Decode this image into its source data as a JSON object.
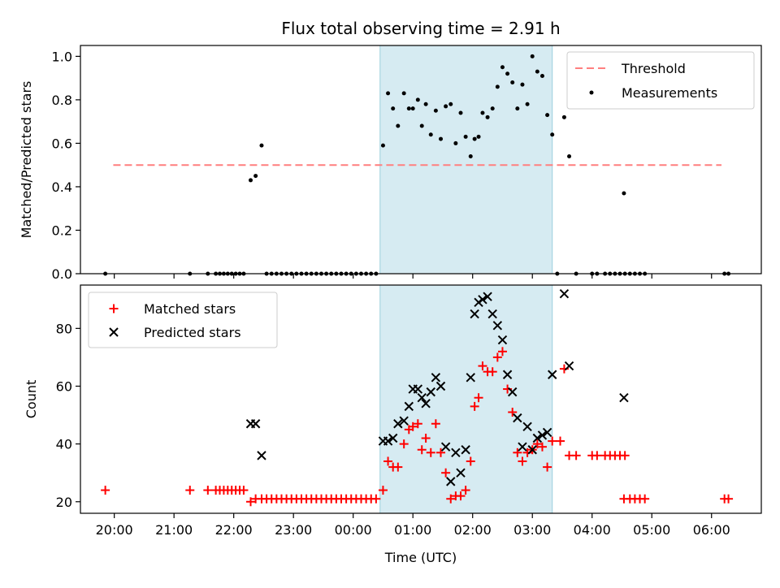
{
  "chart_data": [
    {
      "type": "scatter",
      "title": "Flux total observing time = 2.91 h",
      "xlabel": "",
      "ylabel": "Matched/Predicted stars",
      "ylim": [
        0,
        1.05
      ],
      "yticks": [
        "0.0",
        "0.2",
        "0.4",
        "0.6",
        "0.8",
        "1.0"
      ],
      "ytick_values": [
        0,
        0.2,
        0.4,
        0.6,
        0.8,
        1.0
      ],
      "legend_position": "top-right",
      "shaded_interval": [
        "00:27",
        "03:20"
      ],
      "threshold": {
        "name": "Threshold",
        "value": 0.5,
        "x_range": [
          "19:59",
          "06:10"
        ],
        "color": "#ff7f7f"
      },
      "series": [
        {
          "name": "Measurements",
          "color": "#000000",
          "points": [
            [
              "19:51",
              0
            ],
            [
              "21:16",
              0
            ],
            [
              "21:34",
              0
            ],
            [
              "21:42",
              0
            ],
            [
              "21:46",
              0
            ],
            [
              "21:50",
              0
            ],
            [
              "21:54",
              0
            ],
            [
              "21:58",
              0
            ],
            [
              "22:02",
              0
            ],
            [
              "22:06",
              0
            ],
            [
              "22:10",
              0
            ],
            [
              "22:17",
              0.43
            ],
            [
              "22:22",
              0.45
            ],
            [
              "22:28",
              0.59
            ],
            [
              "22:33",
              0
            ],
            [
              "22:38",
              0
            ],
            [
              "22:43",
              0
            ],
            [
              "22:48",
              0
            ],
            [
              "22:53",
              0
            ],
            [
              "22:58",
              0
            ],
            [
              "23:03",
              0
            ],
            [
              "23:08",
              0
            ],
            [
              "23:13",
              0
            ],
            [
              "23:18",
              0
            ],
            [
              "23:23",
              0
            ],
            [
              "23:28",
              0
            ],
            [
              "23:33",
              0
            ],
            [
              "23:38",
              0
            ],
            [
              "23:43",
              0
            ],
            [
              "23:48",
              0
            ],
            [
              "23:53",
              0
            ],
            [
              "23:58",
              0
            ],
            [
              "00:03",
              0
            ],
            [
              "00:08",
              0
            ],
            [
              "00:13",
              0
            ],
            [
              "00:18",
              0
            ],
            [
              "00:23",
              0
            ],
            [
              "00:30",
              0.59
            ],
            [
              "00:35",
              0.83
            ],
            [
              "00:40",
              0.76
            ],
            [
              "00:45",
              0.68
            ],
            [
              "00:51",
              0.83
            ],
            [
              "00:56",
              0.76
            ],
            [
              "01:00",
              0.76
            ],
            [
              "01:05",
              0.8
            ],
            [
              "01:09",
              0.68
            ],
            [
              "01:13",
              0.78
            ],
            [
              "01:18",
              0.64
            ],
            [
              "01:23",
              0.75
            ],
            [
              "01:28",
              0.62
            ],
            [
              "01:33",
              0.77
            ],
            [
              "01:38",
              0.78
            ],
            [
              "01:43",
              0.6
            ],
            [
              "01:48",
              0.74
            ],
            [
              "01:53",
              0.63
            ],
            [
              "01:58",
              0.54
            ],
            [
              "02:02",
              0.62
            ],
            [
              "02:06",
              0.63
            ],
            [
              "02:10",
              0.74
            ],
            [
              "02:15",
              0.72
            ],
            [
              "02:20",
              0.76
            ],
            [
              "02:25",
              0.86
            ],
            [
              "02:30",
              0.95
            ],
            [
              "02:35",
              0.92
            ],
            [
              "02:40",
              0.88
            ],
            [
              "02:45",
              0.76
            ],
            [
              "02:50",
              0.87
            ],
            [
              "02:55",
              0.78
            ],
            [
              "03:00",
              1.0
            ],
            [
              "03:05",
              0.93
            ],
            [
              "03:10",
              0.91
            ],
            [
              "03:15",
              0.73
            ],
            [
              "03:20",
              0.64
            ],
            [
              "03:25",
              0
            ],
            [
              "03:32",
              0.72
            ],
            [
              "03:37",
              0.54
            ],
            [
              "03:44",
              0
            ],
            [
              "04:00",
              0
            ],
            [
              "04:05",
              0
            ],
            [
              "04:13",
              0
            ],
            [
              "04:18",
              0
            ],
            [
              "04:23",
              0
            ],
            [
              "04:28",
              0
            ],
            [
              "04:33",
              0
            ],
            [
              "04:32",
              0.37
            ],
            [
              "04:38",
              0
            ],
            [
              "04:43",
              0
            ],
            [
              "04:48",
              0
            ],
            [
              "04:53",
              0
            ],
            [
              "06:13",
              0
            ],
            [
              "06:17",
              0
            ]
          ]
        }
      ]
    },
    {
      "type": "scatter",
      "title": "",
      "xlabel": "Time (UTC)",
      "ylabel": "Count",
      "ylim": [
        16,
        95
      ],
      "yticks": [
        "20",
        "40",
        "60",
        "80"
      ],
      "ytick_values": [
        20,
        40,
        60,
        80
      ],
      "xticks": [
        "20:00",
        "21:00",
        "22:00",
        "23:00",
        "00:00",
        "01:00",
        "02:00",
        "03:00",
        "04:00",
        "05:00",
        "06:00"
      ],
      "legend_position": "top-left",
      "shaded_interval": [
        "00:27",
        "03:20"
      ],
      "series": [
        {
          "name": "Matched stars",
          "marker": "+",
          "color": "#ff0000",
          "points": [
            [
              "19:51",
              24
            ],
            [
              "21:16",
              24
            ],
            [
              "21:34",
              24
            ],
            [
              "21:42",
              24
            ],
            [
              "21:46",
              24
            ],
            [
              "21:50",
              24
            ],
            [
              "21:54",
              24
            ],
            [
              "21:58",
              24
            ],
            [
              "22:02",
              24
            ],
            [
              "22:06",
              24
            ],
            [
              "22:10",
              24
            ],
            [
              "22:17",
              20
            ],
            [
              "22:22",
              21
            ],
            [
              "22:28",
              21
            ],
            [
              "22:33",
              21
            ],
            [
              "22:38",
              21
            ],
            [
              "22:43",
              21
            ],
            [
              "22:48",
              21
            ],
            [
              "22:53",
              21
            ],
            [
              "22:58",
              21
            ],
            [
              "23:03",
              21
            ],
            [
              "23:08",
              21
            ],
            [
              "23:13",
              21
            ],
            [
              "23:18",
              21
            ],
            [
              "23:23",
              21
            ],
            [
              "23:28",
              21
            ],
            [
              "23:33",
              21
            ],
            [
              "23:38",
              21
            ],
            [
              "23:43",
              21
            ],
            [
              "23:48",
              21
            ],
            [
              "23:53",
              21
            ],
            [
              "23:58",
              21
            ],
            [
              "00:03",
              21
            ],
            [
              "00:08",
              21
            ],
            [
              "00:13",
              21
            ],
            [
              "00:18",
              21
            ],
            [
              "00:23",
              21
            ],
            [
              "00:30",
              24
            ],
            [
              "00:35",
              34
            ],
            [
              "00:40",
              32
            ],
            [
              "00:45",
              32
            ],
            [
              "00:51",
              40
            ],
            [
              "00:56",
              45
            ],
            [
              "01:00",
              46
            ],
            [
              "01:05",
              47
            ],
            [
              "01:09",
              38
            ],
            [
              "01:13",
              42
            ],
            [
              "01:18",
              37
            ],
            [
              "01:23",
              47
            ],
            [
              "01:28",
              37
            ],
            [
              "01:33",
              30
            ],
            [
              "01:38",
              21
            ],
            [
              "01:43",
              22
            ],
            [
              "01:48",
              22
            ],
            [
              "01:53",
              24
            ],
            [
              "01:58",
              34
            ],
            [
              "02:02",
              53
            ],
            [
              "02:06",
              56
            ],
            [
              "02:10",
              67
            ],
            [
              "02:15",
              65
            ],
            [
              "02:20",
              65
            ],
            [
              "02:25",
              70
            ],
            [
              "02:30",
              72
            ],
            [
              "02:35",
              59
            ],
            [
              "02:40",
              51
            ],
            [
              "02:45",
              37
            ],
            [
              "02:50",
              34
            ],
            [
              "02:55",
              37
            ],
            [
              "03:00",
              38
            ],
            [
              "03:05",
              40
            ],
            [
              "03:10",
              39
            ],
            [
              "03:15",
              32
            ],
            [
              "03:20",
              41
            ],
            [
              "03:28",
              41
            ],
            [
              "03:32",
              66
            ],
            [
              "03:37",
              36
            ],
            [
              "03:44",
              36
            ],
            [
              "04:00",
              36
            ],
            [
              "04:05",
              36
            ],
            [
              "04:13",
              36
            ],
            [
              "04:18",
              36
            ],
            [
              "04:23",
              36
            ],
            [
              "04:28",
              36
            ],
            [
              "04:33",
              36
            ],
            [
              "04:32",
              21
            ],
            [
              "04:38",
              21
            ],
            [
              "04:43",
              21
            ],
            [
              "04:48",
              21
            ],
            [
              "04:53",
              21
            ],
            [
              "06:13",
              21
            ],
            [
              "06:17",
              21
            ]
          ]
        },
        {
          "name": "Predicted stars",
          "marker": "x",
          "color": "#000000",
          "points": [
            [
              "22:17",
              47
            ],
            [
              "22:22",
              47
            ],
            [
              "22:28",
              36
            ],
            [
              "00:30",
              41
            ],
            [
              "00:35",
              41
            ],
            [
              "00:40",
              42
            ],
            [
              "00:45",
              47
            ],
            [
              "00:51",
              48
            ],
            [
              "00:56",
              53
            ],
            [
              "01:00",
              59
            ],
            [
              "01:05",
              59
            ],
            [
              "01:09",
              56
            ],
            [
              "01:13",
              54
            ],
            [
              "01:18",
              58
            ],
            [
              "01:23",
              63
            ],
            [
              "01:28",
              60
            ],
            [
              "01:33",
              39
            ],
            [
              "01:38",
              27
            ],
            [
              "01:43",
              37
            ],
            [
              "01:48",
              30
            ],
            [
              "01:53",
              38
            ],
            [
              "01:58",
              63
            ],
            [
              "02:02",
              85
            ],
            [
              "02:06",
              89
            ],
            [
              "02:10",
              90
            ],
            [
              "02:15",
              91
            ],
            [
              "02:20",
              85
            ],
            [
              "02:25",
              81
            ],
            [
              "02:30",
              76
            ],
            [
              "02:35",
              64
            ],
            [
              "02:40",
              58
            ],
            [
              "02:45",
              49
            ],
            [
              "02:50",
              39
            ],
            [
              "02:55",
              46
            ],
            [
              "03:00",
              38
            ],
            [
              "03:05",
              42
            ],
            [
              "03:10",
              43
            ],
            [
              "03:15",
              44
            ],
            [
              "03:20",
              64
            ],
            [
              "03:32",
              92
            ],
            [
              "03:37",
              67
            ],
            [
              "04:32",
              56
            ]
          ]
        }
      ]
    }
  ],
  "x_domain": [
    "19:26",
    "06:50"
  ]
}
